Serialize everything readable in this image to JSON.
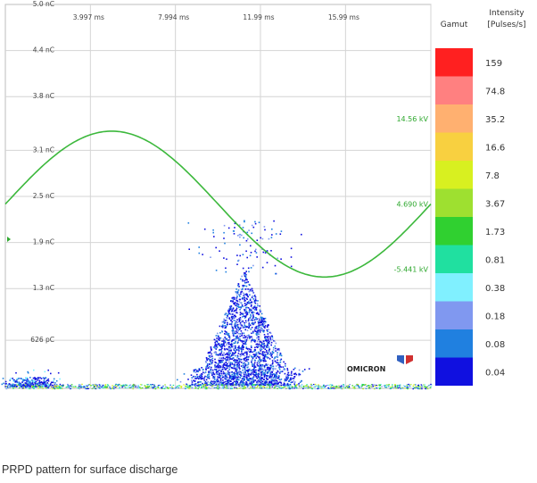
{
  "caption": "PRPD pattern for surface discharge",
  "chart_data": {
    "type": "scatter",
    "title": "",
    "y_axis": {
      "tick_labels": [
        "5.0 nC",
        "4.4 nC",
        "3.8 nC",
        "3.1 nC",
        "2.5 nC",
        "1.9 nC",
        "1.3 nC",
        "626 pC",
        "1.0 pC"
      ],
      "tick_values_nC": [
        5.0,
        4.4,
        3.8,
        3.1,
        2.5,
        1.9,
        1.3,
        0.626,
        0.001
      ],
      "range_nC": [
        0,
        5.0
      ]
    },
    "x_axis": {
      "tick_labels": [
        "3.997 ms",
        "7.994 ms",
        "11.99 ms",
        "15.99 ms"
      ],
      "tick_values_ms": [
        3.997,
        7.994,
        11.99,
        15.99
      ],
      "range_ms": [
        0,
        20
      ]
    },
    "voltage_labels": [
      "14.56 kV",
      "4.690 kV",
      "-5.441 kV"
    ],
    "voltage_label_values_kV": [
      14.56,
      4.69,
      -5.441
    ],
    "voltage_sine": {
      "period_ms": 20,
      "peak_time_ms": 5.0,
      "max_nC": 3.35,
      "min_nC": 1.45,
      "color": "#3cb83c"
    },
    "grid": true,
    "gamut": {
      "title": "Gamut",
      "intensity_title_line1": "Intensity",
      "intensity_title_line2": "[Pulses/s]",
      "levels": [
        {
          "value": "159",
          "color": "#ff2020"
        },
        {
          "value": "74.8",
          "color": "#ff8080"
        },
        {
          "value": "35.2",
          "color": "#ffb070"
        },
        {
          "value": "16.6",
          "color": "#f8d040"
        },
        {
          "value": "7.8",
          "color": "#d8f020"
        },
        {
          "value": "3.67",
          "color": "#9ee030"
        },
        {
          "value": "1.73",
          "color": "#30d030"
        },
        {
          "value": "0.81",
          "color": "#20e0a0"
        },
        {
          "value": "0.38",
          "color": "#80f0ff"
        },
        {
          "value": "0.18",
          "color": "#8098f0"
        },
        {
          "value": "0.08",
          "color": "#2080e0"
        },
        {
          "value": "0.04",
          "color": "#1010e0"
        }
      ]
    },
    "discharge_clusters": [
      {
        "phase_center_ms": 11.2,
        "phase_spread_ms": 1.9,
        "q_max_nC": 2.2,
        "q_typical_max_nC": 1.5,
        "dominant_intensity": "0.04-0.08"
      },
      {
        "phase_center_ms": 1.3,
        "phase_spread_ms": 1.2,
        "q_max_nC": 0.25,
        "q_typical_max_nC": 0.12,
        "dominant_intensity": "0.04-0.38"
      }
    ],
    "baseline_noise": {
      "q_max_nC": 0.06,
      "intensity_range": "0.04-16.6"
    }
  },
  "logo": {
    "text": "OMICRON",
    "colors": [
      "#3060c0",
      "#d03030"
    ]
  }
}
